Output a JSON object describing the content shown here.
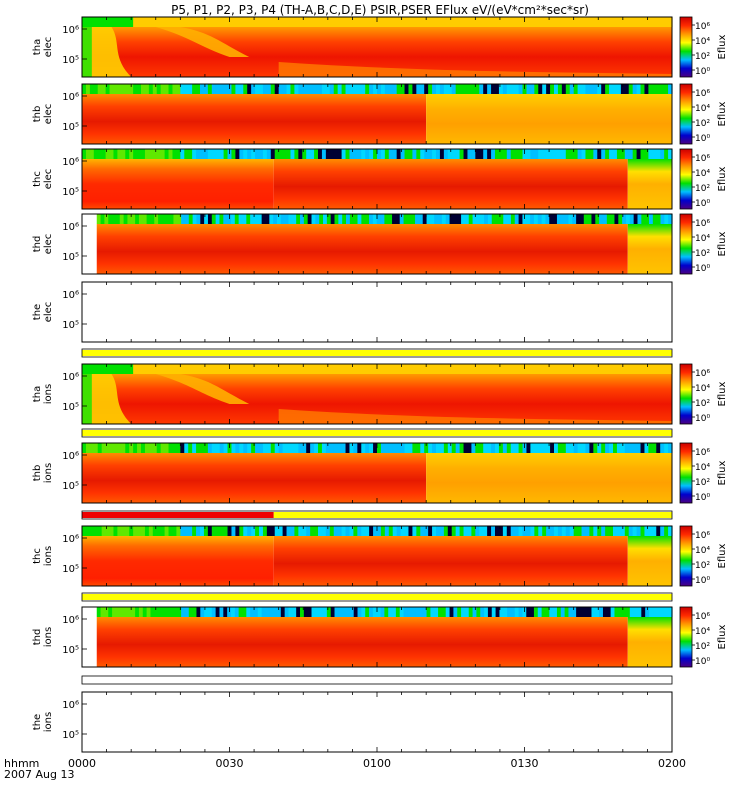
{
  "title": "P5, P1, P2, P3, P4 (TH-A,B,C,D,E) PSIR,PSER EFlux eV/(eV*cm²*sec*sr)",
  "colors": {
    "scale": [
      "#4b0082",
      "#0000cd",
      "#00bfff",
      "#00e000",
      "#ffff00",
      "#ff9900",
      "#ff2a00",
      "#cc0000"
    ],
    "status_yellow": "#ffff00",
    "status_red": "#ee0000"
  },
  "chart_data": {
    "type": "heatmap",
    "x_range": [
      0,
      120
    ],
    "x_unit": "minutes since 00:00 UT",
    "x_ticks": [
      {
        "value": 0,
        "label": "0000"
      },
      {
        "value": 30,
        "label": "0030"
      },
      {
        "value": 60,
        "label": "0100"
      },
      {
        "value": 90,
        "label": "0130"
      },
      {
        "value": 120,
        "label": "0200"
      }
    ],
    "x_axis_title": "hhmm",
    "date_label": "2007 Aug 13",
    "y_tick_labels": [
      "10⁶",
      "10⁵"
    ],
    "colorbar": {
      "title": "Eflux",
      "ticks": [
        "10⁶",
        "10⁴",
        "10²",
        "10⁰"
      ]
    },
    "panels": [
      {
        "probe": "tha",
        "species": "elec",
        "label_top": "tha",
        "label_bottom": "elec",
        "has_data": true,
        "has_colorbar": true,
        "data_start": 0,
        "breaks": []
      },
      {
        "probe": "thb",
        "species": "elec",
        "label_top": "thb",
        "label_bottom": "elec",
        "has_data": true,
        "has_colorbar": true,
        "data_start": 0,
        "breaks": [
          70
        ]
      },
      {
        "probe": "thc",
        "species": "elec",
        "label_top": "thc",
        "label_bottom": "elec",
        "has_data": true,
        "has_colorbar": true,
        "data_start": 0,
        "breaks": [
          39,
          111
        ]
      },
      {
        "probe": "thd",
        "species": "elec",
        "label_top": "thd",
        "label_bottom": "elec",
        "has_data": true,
        "has_colorbar": true,
        "data_start": 3,
        "breaks": [
          111
        ]
      },
      {
        "probe": "the",
        "species": "elec",
        "label_top": "the",
        "label_bottom": "elec",
        "has_data": false,
        "has_colorbar": false,
        "data_start": 0,
        "breaks": []
      },
      {
        "probe": "tha",
        "species": "ions",
        "label_top": "tha",
        "label_bottom": "ions",
        "has_data": true,
        "has_colorbar": true,
        "data_start": 0,
        "breaks": []
      },
      {
        "probe": "thb",
        "species": "ions",
        "label_top": "thb",
        "label_bottom": "ions",
        "has_data": true,
        "has_colorbar": true,
        "data_start": 0,
        "breaks": [
          70
        ]
      },
      {
        "probe": "thc",
        "species": "ions",
        "label_top": "thc",
        "label_bottom": "ions",
        "has_data": true,
        "has_colorbar": true,
        "data_start": 0,
        "breaks": [
          39,
          111
        ]
      },
      {
        "probe": "thd",
        "species": "ions",
        "label_top": "thd",
        "label_bottom": "ions",
        "has_data": true,
        "has_colorbar": true,
        "data_start": 3,
        "breaks": [
          111
        ]
      },
      {
        "probe": "the",
        "species": "ions",
        "label_top": "the",
        "label_bottom": "ions",
        "has_data": false,
        "has_colorbar": false,
        "data_start": 0,
        "breaks": []
      }
    ],
    "status_bars": [
      {
        "after_panel": 4,
        "segments": [
          {
            "from": 0,
            "to": 120,
            "color": "yellow"
          }
        ]
      },
      {
        "after_panel": 5,
        "segments": [
          {
            "from": 0,
            "to": 120,
            "color": "yellow"
          }
        ]
      },
      {
        "after_panel": 6,
        "segments": [
          {
            "from": 0,
            "to": 39,
            "color": "red"
          },
          {
            "from": 39,
            "to": 120,
            "color": "yellow"
          }
        ]
      },
      {
        "after_panel": 7,
        "segments": [
          {
            "from": 0,
            "to": 120,
            "color": "yellow"
          }
        ]
      },
      {
        "after_panel": 8,
        "segments": []
      }
    ]
  }
}
